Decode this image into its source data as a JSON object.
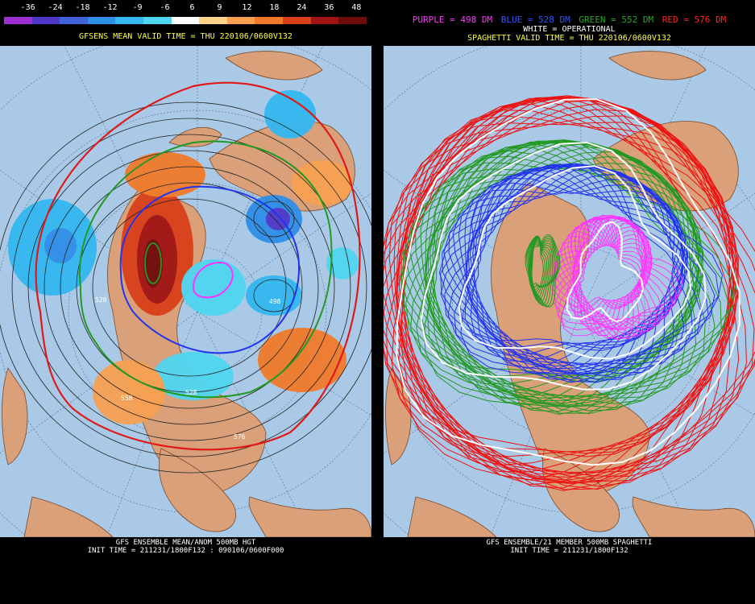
{
  "left": {
    "colorbar": {
      "labels": [
        "-36",
        "-24",
        "-18",
        "-12",
        "-9",
        "-6",
        "6",
        "9",
        "12",
        "18",
        "24",
        "36",
        "48"
      ],
      "colors": [
        "#9d2fd0",
        "#4f37c9",
        "#3f63d8",
        "#2f8fe8",
        "#33b8f0",
        "#4fd6f0",
        "#ffffff",
        "#ffd28a",
        "#f8a052",
        "#f07a2a",
        "#d8401a",
        "#a01414",
        "#6e0c0c"
      ]
    },
    "title": "GFSENS MEAN VALID TIME = THU 220106/0600V132",
    "contour_labels": [
      "498",
      "528",
      "528",
      "558",
      "576"
    ],
    "footer": [
      "GFS ENSEMBLE MEAN/ANOM 500MB HGT",
      "INIT TIME = 211231/1800F132 : 090106/0600F000"
    ]
  },
  "right": {
    "legend": [
      {
        "text": "PURPLE = 498 DM",
        "color": "#ff33ff"
      },
      {
        "text": "BLUE = 528 DM",
        "color": "#3355ff"
      },
      {
        "text": "GREEN = 552 DM",
        "color": "#22aa22"
      },
      {
        "text": "RED = 576 DM",
        "color": "#ff2222"
      }
    ],
    "operational": "WHITE = OPERATIONAL",
    "title": "SPAGHETTI VALID TIME = THU 220106/0600V132",
    "footer": [
      "GFS ENSEMBLE/21 MEMBER 500MB SPAGHETTI",
      "INIT TIME = 211231/1800F132"
    ]
  },
  "colors": {
    "ocean": "#a9c9e6",
    "land": "#d9a07a",
    "purple": "#ff33ff",
    "blue": "#2233ee",
    "green": "#229922",
    "red": "#ee1111",
    "white": "#ffffff"
  }
}
